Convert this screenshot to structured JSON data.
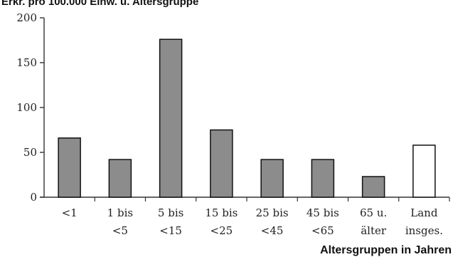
{
  "chart_data": {
    "type": "bar",
    "ylabel": "Erkr. pro 100.000 Einw. u. Altersgruppe",
    "xlabel": "Altersgruppen in Jahren",
    "ylim": [
      0,
      200
    ],
    "yticks": [
      "0",
      "50",
      "100",
      "150",
      "200"
    ],
    "categories": [
      [
        "<1"
      ],
      [
        "1 bis",
        "<5"
      ],
      [
        "5 bis",
        "<15"
      ],
      [
        "15 bis",
        "<25"
      ],
      [
        "25 bis",
        "<45"
      ],
      [
        "45 bis",
        "<65"
      ],
      [
        "65 u.",
        "älter"
      ],
      [
        "Land",
        "insges."
      ]
    ],
    "values": [
      66,
      42,
      176,
      75,
      42,
      42,
      23,
      58
    ],
    "bar_colors": [
      "#8c8c8c",
      "#8c8c8c",
      "#8c8c8c",
      "#8c8c8c",
      "#8c8c8c",
      "#8c8c8c",
      "#8c8c8c",
      "#ffffff"
    ],
    "grid": false,
    "legend": "none"
  }
}
